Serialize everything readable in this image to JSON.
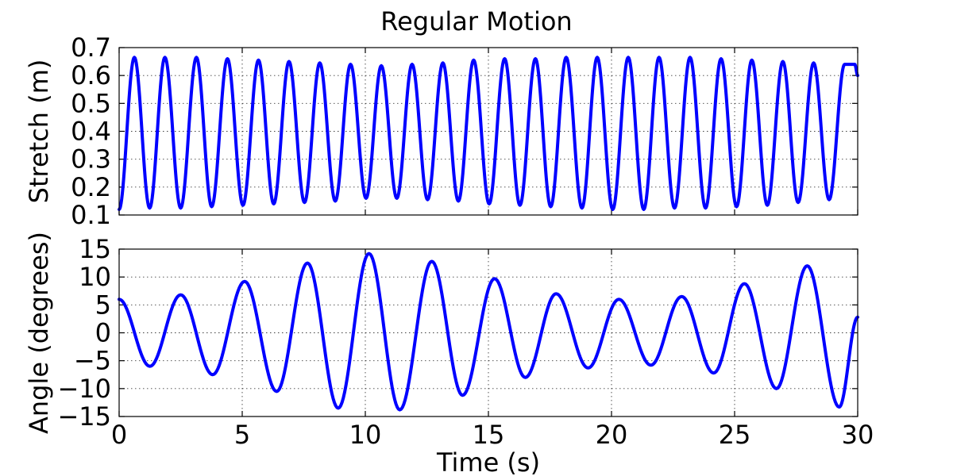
{
  "figure": {
    "title": "Regular Motion"
  },
  "colors": {
    "series": "#0000ff"
  },
  "chart_data": [
    {
      "type": "line",
      "title": "Regular Motion",
      "xlabel": "",
      "ylabel": "Stretch (m)",
      "xlim": [
        0,
        30
      ],
      "ylim": [
        0.1,
        0.7
      ],
      "xticks": [
        0,
        5,
        10,
        15,
        20,
        25,
        30
      ],
      "xtick_labels_visible": false,
      "yticks": [
        0.1,
        0.2,
        0.3,
        0.4,
        0.5,
        0.6,
        0.7
      ],
      "ytick_labels": [
        "0.1",
        "0.2",
        "0.3",
        "0.4",
        "0.5",
        "0.6",
        "0.7"
      ],
      "grid": true,
      "x": [
        0.0,
        0.62,
        1.24,
        1.86,
        2.5,
        3.14,
        3.76,
        4.4,
        5.03,
        5.66,
        6.28,
        6.9,
        7.53,
        8.15,
        8.78,
        9.4,
        10.03,
        10.65,
        11.28,
        11.9,
        12.53,
        13.15,
        13.78,
        14.4,
        15.03,
        15.66,
        16.28,
        16.91,
        17.53,
        18.16,
        18.8,
        19.42,
        20.05,
        20.68,
        21.31,
        21.93,
        22.56,
        23.19,
        23.82,
        24.45,
        25.08,
        25.7,
        26.33,
        26.96,
        27.58,
        28.21,
        28.84,
        29.47,
        29.88,
        30.0
      ],
      "values": [
        0.12,
        0.665,
        0.125,
        0.665,
        0.125,
        0.665,
        0.13,
        0.66,
        0.135,
        0.655,
        0.14,
        0.65,
        0.145,
        0.645,
        0.15,
        0.64,
        0.16,
        0.635,
        0.16,
        0.64,
        0.155,
        0.645,
        0.15,
        0.655,
        0.14,
        0.66,
        0.135,
        0.66,
        0.13,
        0.665,
        0.125,
        0.665,
        0.12,
        0.665,
        0.12,
        0.665,
        0.125,
        0.665,
        0.125,
        0.66,
        0.13,
        0.655,
        0.135,
        0.65,
        0.145,
        0.645,
        0.155,
        0.64,
        0.64,
        0.6
      ]
    },
    {
      "type": "line",
      "xlabel": "Time (s)",
      "ylabel": "Angle (degrees)",
      "xlim": [
        0,
        30
      ],
      "ylim": [
        -15,
        15
      ],
      "xticks": [
        0,
        5,
        10,
        15,
        20,
        25,
        30
      ],
      "xtick_labels": [
        "0",
        "5",
        "10",
        "15",
        "20",
        "25",
        "30"
      ],
      "yticks": [
        -15,
        -10,
        -5,
        0,
        5,
        10,
        15
      ],
      "ytick_labels": [
        "−15",
        "−10",
        "−5",
        "0",
        "5",
        "10",
        "15"
      ],
      "grid": true,
      "x": [
        0.0,
        1.25,
        2.5,
        3.8,
        5.1,
        6.4,
        7.65,
        8.9,
        10.15,
        11.4,
        12.7,
        13.95,
        15.25,
        16.5,
        17.75,
        19.05,
        20.3,
        21.6,
        22.85,
        24.15,
        25.4,
        26.7,
        27.95,
        29.25,
        30.0
      ],
      "values": [
        6,
        -6,
        6.8,
        -7.5,
        9.2,
        -10.5,
        12.5,
        -13.5,
        14.2,
        -13.8,
        12.8,
        -11.2,
        9.7,
        -8.0,
        7.0,
        -6.3,
        6.0,
        -5.8,
        6.5,
        -7.2,
        8.8,
        -10.0,
        12.0,
        -13.3,
        2.8
      ]
    }
  ]
}
